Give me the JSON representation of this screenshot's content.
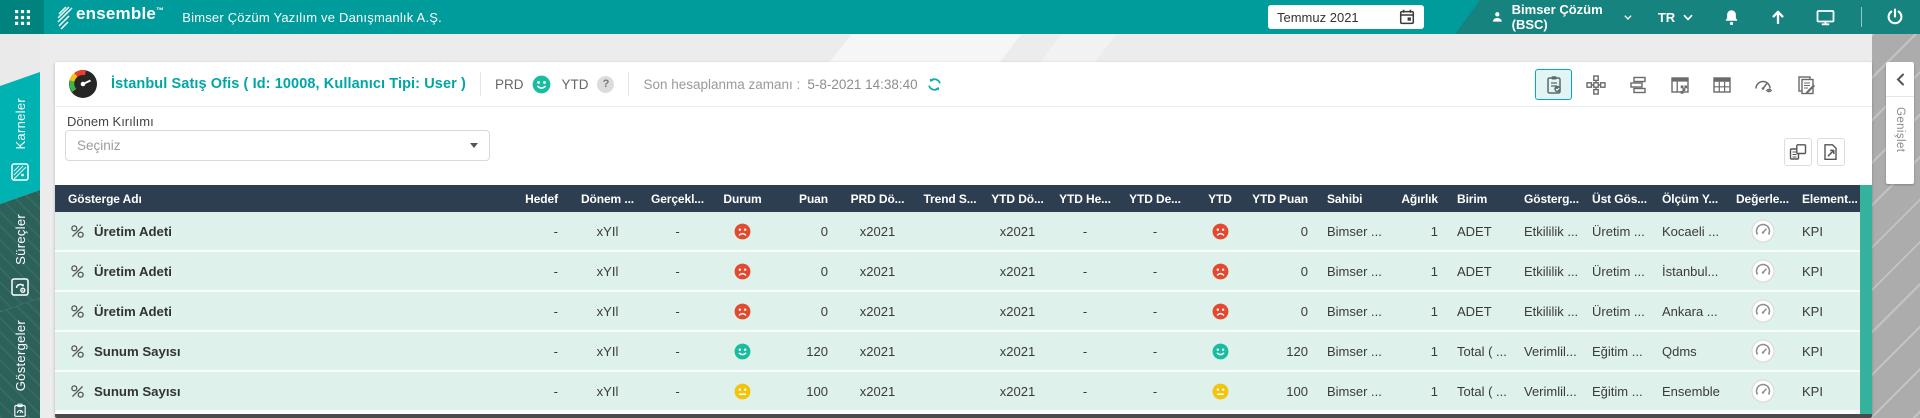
{
  "topbar": {
    "logo": "ensemble",
    "logo_tm": "™",
    "company": "Bimser Çözüm Yazılım ve Danışmanlık A.Ş.",
    "date_picker": {
      "value": "Temmuz 2021",
      "icon": "calendar-icon"
    },
    "user_menu": {
      "label": "Bimser Çözüm (BSC)",
      "icon": "person-icon"
    },
    "language": "TR",
    "action_icons": [
      "bell-icon",
      "arrow-up-icon",
      "monitor-icon",
      "power-icon"
    ]
  },
  "sidebar": {
    "tabs": [
      {
        "label": "Karneler",
        "icon": "scorecard-icon",
        "active": true
      },
      {
        "label": "Süreçler",
        "icon": "process-icon",
        "active": false
      },
      {
        "label": "Göstergeler",
        "icon": "indicator-icon",
        "active": false
      }
    ]
  },
  "scorecard_header": {
    "title": "İstanbul Satış Ofis ( Id: 10008, Kullanıcı Tipi: User )",
    "prd_label": "PRD",
    "prd_mood": "happy",
    "ytd_label": "YTD",
    "ytd_badge": "?",
    "last_calc_label": "Son hesaplanma zamanı :",
    "last_calc_value": "5-8-2021 14:38:40",
    "view_icons": [
      "scorecard-view-icon",
      "hierarchy-view-icon",
      "tree-view-icon",
      "layout-view-icon",
      "table-view-icon",
      "gauge-view-icon",
      "report-view-icon"
    ],
    "active_view": 0
  },
  "filters": {
    "period_breakdown_label": "Dönem Kırılımı",
    "period_placeholder": "Seçiniz",
    "grid_tools": [
      "column-chooser-icon",
      "export-icon"
    ]
  },
  "expander": {
    "label": "Genişlet"
  },
  "table": {
    "columns": [
      "Gösterge Adı",
      "Hedef",
      "Dönem ...",
      "Gerçekl...",
      "Durum",
      "Puan",
      "PRD Dö...",
      "Trend S...",
      "YTD Dö...",
      "YTD He...",
      "YTD De...",
      "YTD",
      "YTD Puan",
      "Sahibi",
      "Ağırlık",
      "Birim",
      "Gösterg...",
      "Üst Gös...",
      "Ölçüm Y...",
      "Değerle...",
      "Element..."
    ],
    "rows": [
      {
        "name": "Üretim Adeti",
        "hedef": "-",
        "donem": "xYIl",
        "gercek": "-",
        "durum": "sad",
        "puan": "0",
        "prd": "x2021",
        "trend": "",
        "ytdDonem": "x2021",
        "ytdHedef": "-",
        "ytdDeger": "-",
        "ytd": "sad",
        "ytdPuan": "0",
        "sahibi": "Bimser ...",
        "agirlik": "1",
        "birim": "ADET",
        "gosterge": "Etkililik ...",
        "ust": "Üretim ...",
        "olcum": "Kocaeli ...",
        "degerlendirme": "gauge",
        "element": "KPI"
      },
      {
        "name": "Üretim Adeti",
        "hedef": "-",
        "donem": "xYIl",
        "gercek": "-",
        "durum": "sad",
        "puan": "0",
        "prd": "x2021",
        "trend": "",
        "ytdDonem": "x2021",
        "ytdHedef": "-",
        "ytdDeger": "-",
        "ytd": "sad",
        "ytdPuan": "0",
        "sahibi": "Bimser ...",
        "agirlik": "1",
        "birim": "ADET",
        "gosterge": "Etkililik ...",
        "ust": "Üretim ...",
        "olcum": "İstanbul...",
        "degerlendirme": "gauge",
        "element": "KPI"
      },
      {
        "name": "Üretim Adeti",
        "hedef": "-",
        "donem": "xYIl",
        "gercek": "-",
        "durum": "sad",
        "puan": "0",
        "prd": "x2021",
        "trend": "",
        "ytdDonem": "x2021",
        "ytdHedef": "-",
        "ytdDeger": "-",
        "ytd": "sad",
        "ytdPuan": "0",
        "sahibi": "Bimser ...",
        "agirlik": "1",
        "birim": "ADET",
        "gosterge": "Etkililik ...",
        "ust": "Üretim ...",
        "olcum": "Ankara ...",
        "degerlendirme": "gauge",
        "element": "KPI"
      },
      {
        "name": "Sunum Sayısı",
        "hedef": "-",
        "donem": "xYIl",
        "gercek": "-",
        "durum": "happy",
        "puan": "120",
        "prd": "x2021",
        "trend": "",
        "ytdDonem": "x2021",
        "ytdHedef": "-",
        "ytdDeger": "-",
        "ytd": "happy",
        "ytdPuan": "120",
        "sahibi": "Bimser ...",
        "agirlik": "1",
        "birim": "Total ( ...",
        "gosterge": "Verimlil...",
        "ust": "Eğitim ...",
        "olcum": "Qdms",
        "degerlendirme": "gauge",
        "element": "KPI"
      },
      {
        "name": "Sunum Sayısı",
        "hedef": "-",
        "donem": "xYIl",
        "gercek": "-",
        "durum": "neutral",
        "puan": "100",
        "prd": "x2021",
        "trend": "",
        "ytdDonem": "x2021",
        "ytdHedef": "-",
        "ytdDeger": "-",
        "ytd": "neutral",
        "ytdPuan": "100",
        "sahibi": "Bimser ...",
        "agirlik": "1",
        "birim": "Total ( ...",
        "gosterge": "Verimlil...",
        "ust": "Eğitim ...",
        "olcum": "Ensemble",
        "degerlendirme": "gauge",
        "element": "KPI"
      }
    ]
  },
  "colors": {
    "happy": "#17bd9e",
    "sad": "#e2492f",
    "neutral": "#f2c40d",
    "accent_teal": "#009b9b",
    "table_header_bg": "#2d3e50",
    "row_bg": "#def1ea"
  }
}
